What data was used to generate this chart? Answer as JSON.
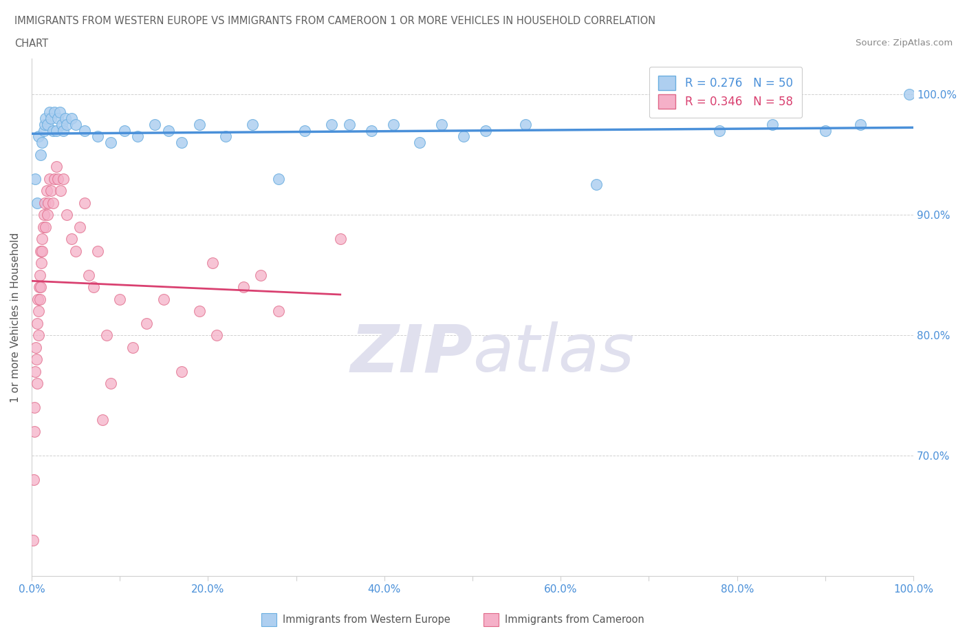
{
  "title_line1": "IMMIGRANTS FROM WESTERN EUROPE VS IMMIGRANTS FROM CAMEROON 1 OR MORE VEHICLES IN HOUSEHOLD CORRELATION",
  "title_line2": "CHART",
  "source_text": "Source: ZipAtlas.com",
  "ylabel": "1 or more Vehicles in Household",
  "xlim": [
    0.0,
    100.0
  ],
  "ylim": [
    60.0,
    103.0
  ],
  "yticks": [
    70.0,
    80.0,
    90.0,
    100.0
  ],
  "ytick_labels": [
    "70.0%",
    "80.0%",
    "90.0%",
    "100.0%"
  ],
  "xticks": [
    0.0,
    10.0,
    20.0,
    30.0,
    40.0,
    50.0,
    60.0,
    70.0,
    80.0,
    90.0,
    100.0
  ],
  "xtick_labels": [
    "0.0%",
    "",
    "20.0%",
    "",
    "40.0%",
    "",
    "60.0%",
    "",
    "80.0%",
    "",
    "100.0%"
  ],
  "blue_color": "#aecff0",
  "pink_color": "#f5b0c8",
  "blue_edge_color": "#6aaee0",
  "pink_edge_color": "#e06888",
  "blue_line_color": "#4a90d9",
  "pink_line_color": "#d94070",
  "legend_blue_r": "R = 0.276",
  "legend_blue_n": "N = 50",
  "legend_pink_r": "R = 0.346",
  "legend_pink_n": "N = 58",
  "title_color": "#606060",
  "axis_color": "#4a90d9",
  "grid_color": "#d0d0d0",
  "watermark_zip": "ZIP",
  "watermark_atlas": "atlas",
  "watermark_color": "#e0e0ee",
  "blue_x": [
    0.4,
    0.6,
    0.8,
    1.0,
    1.2,
    1.4,
    1.5,
    1.6,
    1.8,
    2.0,
    2.2,
    2.4,
    2.6,
    2.8,
    3.0,
    3.2,
    3.4,
    3.6,
    3.8,
    4.0,
    4.5,
    5.0,
    6.0,
    7.5,
    9.0,
    10.5,
    12.0,
    14.0,
    15.5,
    17.0,
    19.0,
    22.0,
    25.0,
    28.0,
    31.0,
    34.0,
    36.0,
    38.5,
    41.0,
    44.0,
    46.5,
    49.0,
    51.5,
    56.0,
    64.0,
    78.0,
    84.0,
    90.0,
    94.0,
    99.5
  ],
  "blue_y": [
    93.0,
    91.0,
    96.5,
    95.0,
    96.0,
    97.0,
    97.5,
    98.0,
    97.5,
    98.5,
    98.0,
    97.0,
    98.5,
    97.0,
    98.0,
    98.5,
    97.5,
    97.0,
    98.0,
    97.5,
    98.0,
    97.5,
    97.0,
    96.5,
    96.0,
    97.0,
    96.5,
    97.5,
    97.0,
    96.0,
    97.5,
    96.5,
    97.5,
    93.0,
    97.0,
    97.5,
    97.5,
    97.0,
    97.5,
    96.0,
    97.5,
    96.5,
    97.0,
    97.5,
    92.5,
    97.0,
    97.5,
    97.0,
    97.5,
    100.0
  ],
  "pink_x": [
    0.15,
    0.2,
    0.3,
    0.35,
    0.4,
    0.5,
    0.55,
    0.6,
    0.65,
    0.7,
    0.75,
    0.8,
    0.85,
    0.9,
    0.95,
    1.0,
    1.05,
    1.1,
    1.15,
    1.2,
    1.3,
    1.4,
    1.5,
    1.6,
    1.7,
    1.8,
    1.9,
    2.0,
    2.2,
    2.4,
    2.6,
    2.8,
    3.0,
    3.3,
    3.6,
    4.0,
    4.5,
    5.0,
    5.5,
    6.0,
    6.5,
    7.0,
    7.5,
    8.0,
    8.5,
    9.0,
    10.0,
    11.5,
    13.0,
    15.0,
    17.0,
    19.0,
    21.0,
    24.0,
    28.0,
    35.0,
    20.5,
    26.0
  ],
  "pink_y": [
    63.0,
    68.0,
    72.0,
    74.0,
    77.0,
    79.0,
    78.0,
    81.0,
    76.0,
    83.0,
    80.0,
    82.0,
    84.0,
    85.0,
    83.0,
    87.0,
    84.0,
    86.0,
    88.0,
    87.0,
    89.0,
    90.0,
    91.0,
    89.0,
    92.0,
    90.0,
    91.0,
    93.0,
    92.0,
    91.0,
    93.0,
    94.0,
    93.0,
    92.0,
    93.0,
    90.0,
    88.0,
    87.0,
    89.0,
    91.0,
    85.0,
    84.0,
    87.0,
    73.0,
    80.0,
    76.0,
    83.0,
    79.0,
    81.0,
    83.0,
    77.0,
    82.0,
    80.0,
    84.0,
    82.0,
    88.0,
    86.0,
    85.0
  ]
}
